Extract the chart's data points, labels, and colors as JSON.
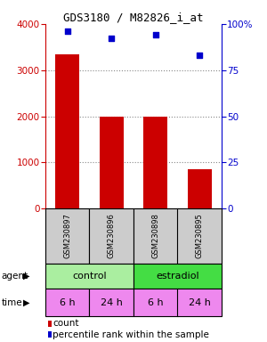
{
  "title": "GDS3180 / M82826_i_at",
  "samples": [
    "GSM230897",
    "GSM230896",
    "GSM230898",
    "GSM230895"
  ],
  "counts": [
    3350,
    2000,
    2000,
    850
  ],
  "percentiles": [
    96,
    92,
    94,
    83
  ],
  "ylim_left": [
    0,
    4000
  ],
  "ylim_right": [
    0,
    100
  ],
  "yticks_left": [
    0,
    1000,
    2000,
    3000,
    4000
  ],
  "yticks_right": [
    0,
    25,
    50,
    75,
    100
  ],
  "ytick_labels_right": [
    "0",
    "25",
    "50",
    "75",
    "100%"
  ],
  "bar_color": "#cc0000",
  "dot_color": "#0000cc",
  "agent_labels": [
    "control",
    "estradiol"
  ],
  "agent_color_control": "#aaeea0",
  "agent_color_estradiol": "#44dd44",
  "time_labels": [
    "6 h",
    "24 h",
    "6 h",
    "24 h"
  ],
  "time_color": "#ee88ee",
  "sample_box_color": "#cccccc",
  "background_color": "#ffffff",
  "grid_color": "#888888"
}
